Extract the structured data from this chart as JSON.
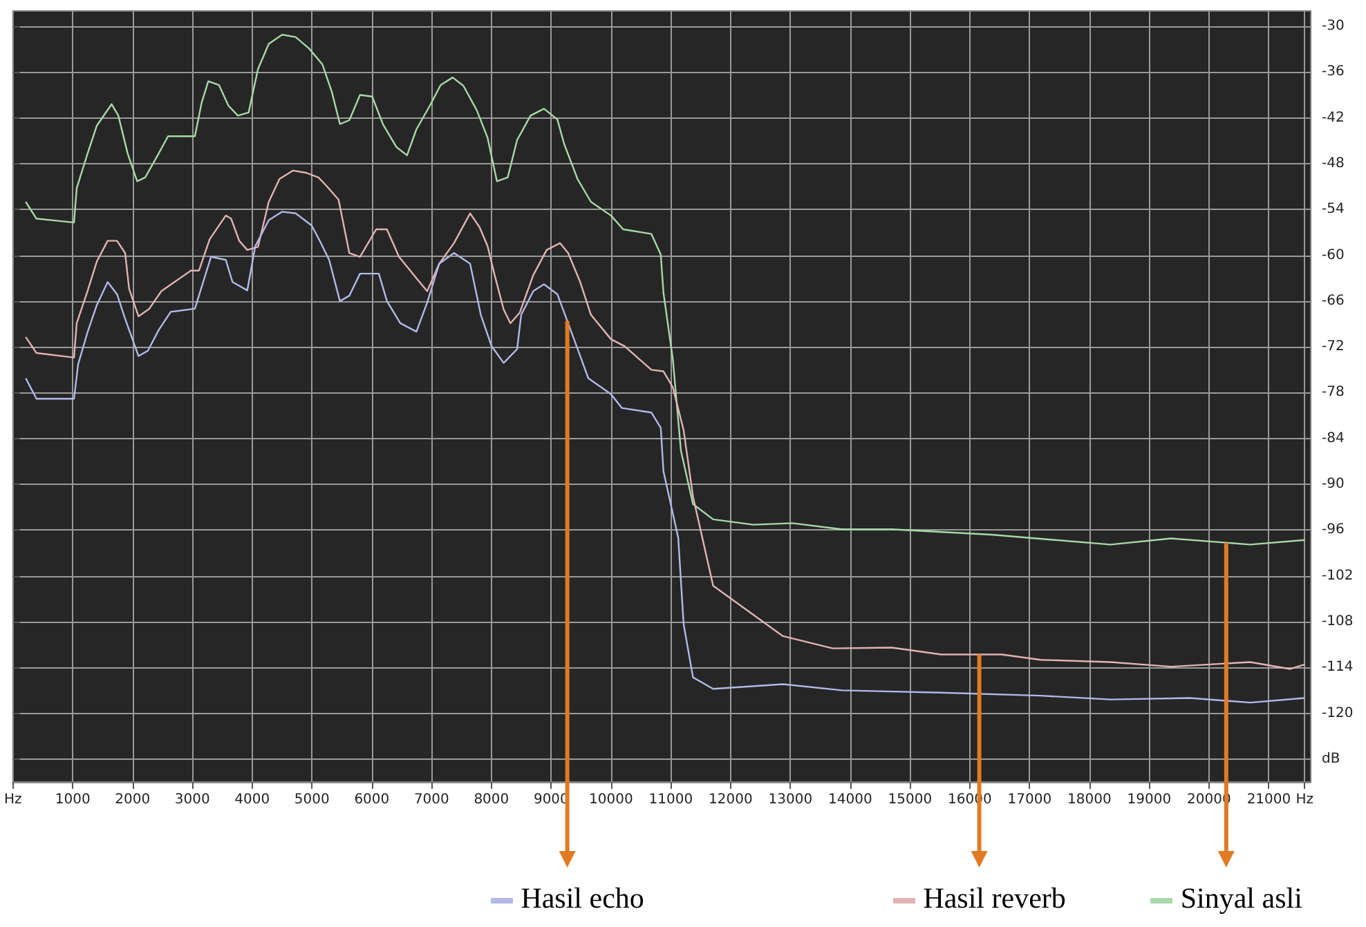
{
  "chart_data": {
    "type": "line",
    "xlim": [
      0,
      21700
    ],
    "ylim": [
      -129,
      -28
    ],
    "xticks": [
      {
        "value": 0,
        "label": "Hz"
      },
      1000,
      2000,
      3000,
      4000,
      5000,
      6000,
      7000,
      8000,
      9000,
      10000,
      11000,
      12000,
      13000,
      14000,
      15000,
      16000,
      17000,
      18000,
      19000,
      20000,
      21000,
      {
        "value": 21600,
        "label": "Hz"
      }
    ],
    "yticks": [
      -30,
      -36,
      -42,
      -48,
      -54,
      -60,
      -66,
      -72,
      -78,
      -84,
      -90,
      -96,
      -102,
      -108,
      -114,
      -120,
      {
        "value": -126,
        "label": "dB"
      }
    ],
    "grid": true,
    "legend": "bottom",
    "marker": "none",
    "line_style": "solid",
    "series": [
      {
        "name": "Sinyal asli",
        "color": "#a8d8a8",
        "x": [
          213,
          393,
          1021,
          1066,
          1246,
          1403,
          1650,
          1762,
          1919,
          2077,
          2211,
          2413,
          2593,
          3042,
          3155,
          3266,
          3446,
          3603,
          3760,
          3940,
          4097,
          4277,
          4501,
          4726,
          4950,
          5175,
          5332,
          5467,
          5624,
          5803,
          6006,
          6185,
          6410,
          6589,
          6746,
          6971,
          7150,
          7352,
          7532,
          7756,
          7936,
          8093,
          8273,
          8430,
          8655,
          8879,
          9103,
          9216,
          9440,
          9665,
          10001,
          10204,
          10675,
          10832,
          10877,
          11034,
          11169,
          11371,
          11708,
          12382,
          13033,
          13864,
          14694,
          16355,
          18353,
          19363,
          20688,
          21600
        ],
        "values": [
          -53.0,
          -55.2,
          -55.7,
          -51.2,
          -46.7,
          -43.0,
          -40.2,
          -41.7,
          -46.7,
          -50.3,
          -49.8,
          -47.0,
          -44.4,
          -44.4,
          -40.0,
          -37.2,
          -37.7,
          -40.4,
          -41.7,
          -41.3,
          -35.6,
          -32.3,
          -31.1,
          -31.4,
          -32.9,
          -35.0,
          -38.6,
          -42.8,
          -42.3,
          -39.0,
          -39.2,
          -42.8,
          -45.8,
          -46.9,
          -43.5,
          -40.4,
          -37.7,
          -36.7,
          -37.8,
          -41.0,
          -44.6,
          -50.3,
          -49.8,
          -44.9,
          -41.7,
          -40.8,
          -42.2,
          -45.4,
          -50.0,
          -53.0,
          -54.8,
          -56.6,
          -57.2,
          -59.9,
          -64.9,
          -73.6,
          -85.6,
          -92.6,
          -94.6,
          -95.3,
          -95.1,
          -95.9,
          -95.9,
          -96.6,
          -97.9,
          -97.1,
          -97.9,
          -97.3
        ]
      },
      {
        "name": "Hasil reverb",
        "color": "#e0b4b4",
        "x": [
          213,
          393,
          1021,
          1066,
          1246,
          1403,
          1583,
          1740,
          1875,
          1942,
          2099,
          2279,
          2481,
          2975,
          3110,
          3289,
          3558,
          3648,
          3783,
          3918,
          4097,
          4277,
          4457,
          4681,
          4906,
          5108,
          5242,
          5444,
          5624,
          5803,
          6073,
          6253,
          6455,
          6746,
          6926,
          7128,
          7375,
          7644,
          7801,
          7936,
          8048,
          8205,
          8318,
          8475,
          8700,
          8924,
          9148,
          9283,
          9485,
          9665,
          10001,
          10226,
          10675,
          10877,
          11034,
          11214,
          11371,
          11708,
          12876,
          13707,
          14694,
          15525,
          16535,
          17186,
          18353,
          19363,
          20688,
          21360,
          21600
        ],
        "values": [
          -70.7,
          -72.8,
          -73.4,
          -68.9,
          -64.7,
          -60.8,
          -58.1,
          -58.1,
          -59.7,
          -64.4,
          -68.0,
          -67.0,
          -64.7,
          -62.0,
          -62.0,
          -57.9,
          -54.8,
          -55.2,
          -58.1,
          -59.3,
          -58.9,
          -53.0,
          -50.0,
          -48.9,
          -49.2,
          -49.8,
          -50.9,
          -52.7,
          -59.7,
          -60.2,
          -56.6,
          -56.6,
          -60.2,
          -63.0,
          -64.7,
          -61.1,
          -58.4,
          -54.5,
          -56.3,
          -58.8,
          -62.4,
          -67.1,
          -68.9,
          -67.5,
          -62.6,
          -59.3,
          -58.4,
          -59.7,
          -63.5,
          -67.8,
          -71.0,
          -71.9,
          -75.0,
          -75.2,
          -77.3,
          -82.9,
          -91.6,
          -103.3,
          -109.9,
          -111.5,
          -111.4,
          -112.3,
          -112.3,
          -113.0,
          -113.3,
          -113.9,
          -113.3,
          -114.2,
          -113.6
        ]
      },
      {
        "name": "Hasil echo",
        "color": "#b4b8e8",
        "x": [
          213,
          393,
          1021,
          1089,
          1246,
          1403,
          1583,
          1740,
          1875,
          2099,
          2256,
          2436,
          2638,
          3042,
          3311,
          3558,
          3671,
          3918,
          4052,
          4277,
          4501,
          4726,
          4995,
          5130,
          5287,
          5467,
          5624,
          5803,
          6118,
          6253,
          6477,
          6746,
          6926,
          7128,
          7375,
          7644,
          7823,
          8003,
          8205,
          8430,
          8498,
          8700,
          8879,
          9103,
          9283,
          9485,
          9620,
          10001,
          10181,
          10675,
          10832,
          10877,
          11124,
          11214,
          11371,
          11708,
          12876,
          13864,
          15525,
          17186,
          18353,
          19678,
          20688,
          21600
        ],
        "values": [
          -76.1,
          -78.8,
          -78.8,
          -74.3,
          -70.1,
          -66.5,
          -63.5,
          -65.1,
          -68.3,
          -73.2,
          -72.5,
          -69.8,
          -67.4,
          -67.0,
          -60.2,
          -60.6,
          -63.5,
          -64.6,
          -58.8,
          -55.4,
          -54.3,
          -54.5,
          -56.1,
          -58.1,
          -60.6,
          -66.0,
          -65.3,
          -62.4,
          -62.4,
          -66.0,
          -68.9,
          -70.0,
          -66.2,
          -61.1,
          -59.7,
          -61.1,
          -67.8,
          -71.9,
          -74.1,
          -72.3,
          -67.8,
          -64.7,
          -63.8,
          -65.1,
          -68.9,
          -73.2,
          -76.1,
          -78.2,
          -80.0,
          -80.6,
          -82.6,
          -88.3,
          -97.0,
          -108.3,
          -115.3,
          -116.8,
          -116.2,
          -117.0,
          -117.3,
          -117.7,
          -118.2,
          -118.0,
          -118.6,
          -118.0
        ]
      }
    ]
  }
}
